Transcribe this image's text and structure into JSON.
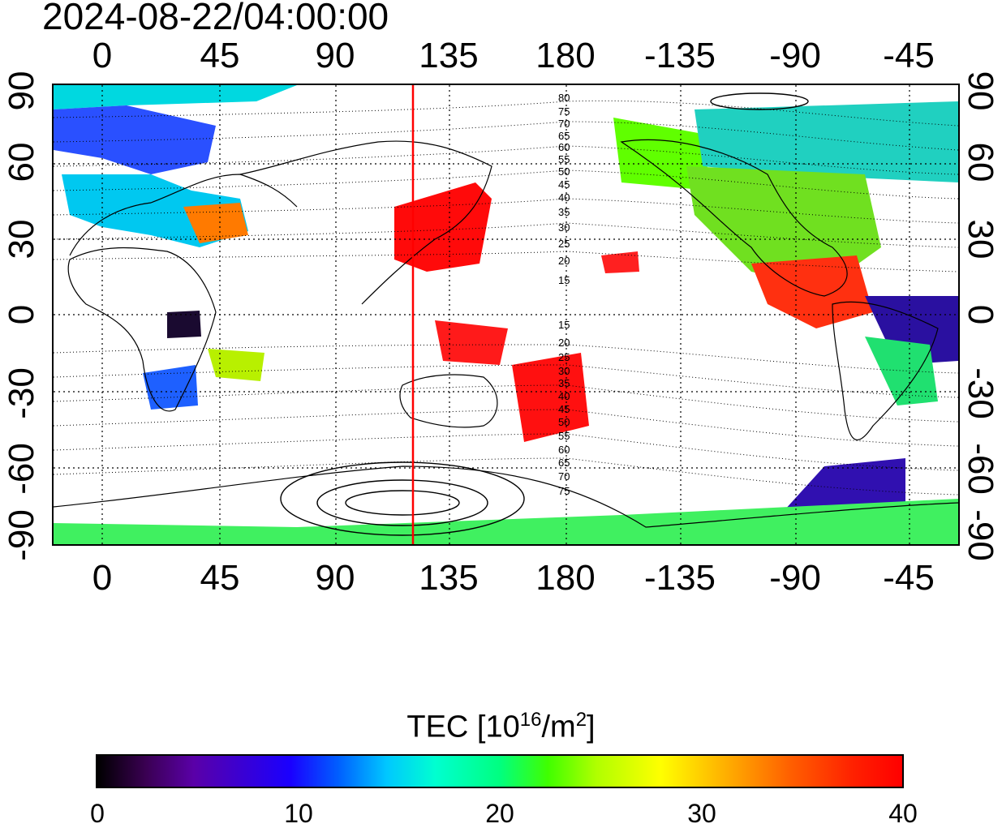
{
  "timestamp": "2024-08-22/04:00:00",
  "longitude_ticks": [
    "0",
    "45",
    "90",
    "135",
    "180",
    "-135",
    "-90",
    "-45"
  ],
  "latitude_ticks": [
    "90",
    "60",
    "30",
    "0",
    "-30",
    "-60",
    "-90"
  ],
  "subsolar_longitude": 120,
  "contour_labels_north": [
    "80",
    "75",
    "70",
    "65",
    "60",
    "55",
    "50",
    "45",
    "40",
    "35",
    "30",
    "25",
    "20",
    "15"
  ],
  "contour_labels_south": [
    "15",
    "20",
    "25",
    "30",
    "35",
    "40",
    "45",
    "50",
    "55",
    "60",
    "65",
    "70",
    "75"
  ],
  "colorbar": {
    "title_prefix": "TEC  [10",
    "title_exp1": "16",
    "title_mid": "/m",
    "title_exp2": "2",
    "title_suffix": "]",
    "ticks": [
      "0",
      "10",
      "20",
      "30",
      "40"
    ],
    "min": 0,
    "max": 40
  },
  "colors": {
    "subsolar_line": "#ff0000",
    "grid": "#000000",
    "coast": "#000000"
  }
}
